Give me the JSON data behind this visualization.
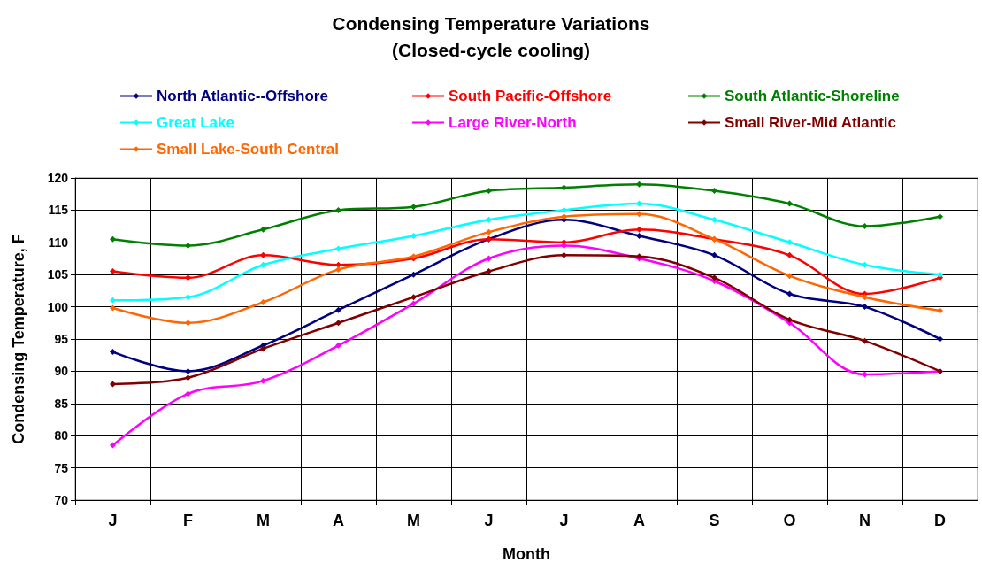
{
  "chart_data": {
    "type": "line",
    "title": "Condensing Temperature Variations\n(Closed-cycle cooling)",
    "xlabel": "Month",
    "ylabel": "Condensing Temperature, F",
    "categories": [
      "J",
      "F",
      "M",
      "A",
      "M",
      "J",
      "J",
      "A",
      "S",
      "O",
      "N",
      "D"
    ],
    "ylim": [
      70,
      120
    ],
    "yticks": [
      70,
      75,
      80,
      85,
      90,
      95,
      100,
      105,
      110,
      115,
      120
    ],
    "grid": true,
    "legend": "top",
    "marker": "diamond",
    "line_style": "solid",
    "series": [
      {
        "name": "North Atlantic--Offshore",
        "color": "#000080",
        "values": [
          93,
          90,
          94,
          99.5,
          105,
          110.5,
          113.5,
          111,
          108,
          102,
          100,
          95
        ]
      },
      {
        "name": "South Pacific-Offshore",
        "color": "#ff0000",
        "values": [
          105.5,
          104.5,
          108,
          106.5,
          107.5,
          110.5,
          110,
          112,
          110.5,
          108,
          102,
          104.5
        ]
      },
      {
        "name": "South Atlantic-Shoreline",
        "color": "#008000",
        "values": [
          110.5,
          109.5,
          112,
          115,
          115.5,
          118,
          118.5,
          119,
          118,
          116,
          112.5,
          114
        ]
      },
      {
        "name": "Great Lake",
        "color": "#00ffff",
        "values": [
          101,
          101.5,
          106.5,
          109,
          111,
          113.5,
          115,
          116,
          113.5,
          110,
          106.5,
          105
        ]
      },
      {
        "name": "Large River-North",
        "color": "#ff00ff",
        "values": [
          78.5,
          86.5,
          88.5,
          94,
          100.5,
          107.5,
          109.5,
          107.5,
          104,
          97.5,
          89.5,
          90
        ]
      },
      {
        "name": "Small River-Mid Atlantic",
        "color": "#800000",
        "values": [
          88,
          89,
          93.5,
          97.5,
          101.5,
          105.5,
          108,
          107.8,
          104.5,
          98,
          94.7,
          90
        ]
      },
      {
        "name": "Small Lake-South Central",
        "color": "#ff6600",
        "values": [
          99.8,
          97.5,
          100.7,
          105.8,
          107.8,
          111.6,
          114,
          114.4,
          110.5,
          104.8,
          101.5,
          99.4
        ]
      }
    ]
  }
}
